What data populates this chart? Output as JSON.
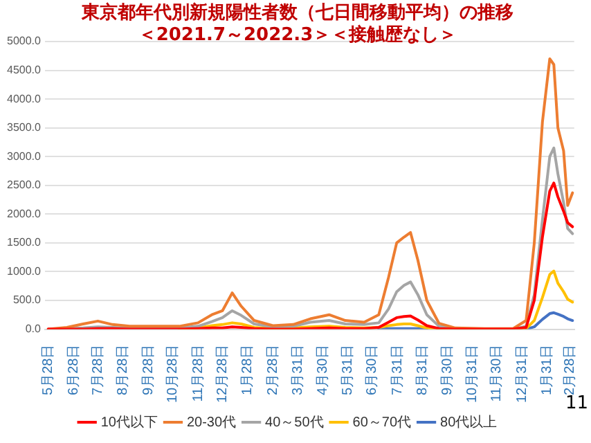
{
  "chart_data": {
    "type": "line",
    "title": "東京都年代別新規陽性者数（七日間移動平均）の推移",
    "subtitle": "＜2021.7～2022.3＞＜接触歴なし＞",
    "x": [
      "2020-05-28",
      "2020-06-20",
      "2020-07-10",
      "2020-07-28",
      "2020-08-15",
      "2020-09-05",
      "2020-10-05",
      "2020-11-05",
      "2020-11-28",
      "2020-12-15",
      "2020-12-28",
      "2021-01-09",
      "2021-01-20",
      "2021-02-05",
      "2021-02-28",
      "2021-03-25",
      "2021-04-15",
      "2021-05-08",
      "2021-05-28",
      "2021-06-20",
      "2021-07-08",
      "2021-07-20",
      "2021-07-30",
      "2021-08-08",
      "2021-08-16",
      "2021-08-25",
      "2021-09-05",
      "2021-09-20",
      "2021-10-10",
      "2021-11-15",
      "2021-12-20",
      "2022-01-05",
      "2022-01-15",
      "2022-01-25",
      "2022-02-03",
      "2022-02-08",
      "2022-02-13",
      "2022-02-20",
      "2022-02-25",
      "2022-03-03"
    ],
    "series": [
      {
        "name": "10代以下",
        "color": "#ff0000",
        "values": [
          0,
          0,
          0,
          10,
          10,
          0,
          0,
          0,
          10,
          20,
          20,
          40,
          30,
          10,
          0,
          0,
          10,
          20,
          10,
          10,
          30,
          120,
          200,
          220,
          230,
          160,
          60,
          10,
          0,
          0,
          0,
          30,
          500,
          1600,
          2400,
          2540,
          2300,
          2050,
          1850,
          1780
        ]
      },
      {
        "name": "20-30代",
        "color": "#ed7d31",
        "values": [
          0,
          30,
          90,
          140,
          80,
          50,
          50,
          50,
          110,
          250,
          320,
          630,
          400,
          150,
          60,
          80,
          180,
          250,
          150,
          120,
          250,
          900,
          1500,
          1600,
          1680,
          1200,
          500,
          100,
          20,
          10,
          10,
          150,
          1500,
          3600,
          4700,
          4600,
          3500,
          3100,
          2150,
          2370
        ]
      },
      {
        "name": "40～50代",
        "color": "#a5a5a5",
        "values": [
          0,
          10,
          20,
          40,
          30,
          20,
          20,
          20,
          50,
          130,
          200,
          320,
          240,
          90,
          40,
          50,
          120,
          150,
          90,
          80,
          110,
          350,
          650,
          760,
          820,
          600,
          250,
          50,
          10,
          0,
          0,
          50,
          600,
          1900,
          3000,
          3150,
          2700,
          2200,
          1750,
          1660
        ]
      },
      {
        "name": "60～70代",
        "color": "#ffc000",
        "values": [
          null,
          null,
          null,
          null,
          null,
          null,
          null,
          10,
          20,
          60,
          80,
          110,
          90,
          30,
          10,
          20,
          40,
          50,
          30,
          20,
          30,
          60,
          80,
          90,
          90,
          60,
          20,
          0,
          0,
          0,
          0,
          10,
          150,
          550,
          950,
          1010,
          800,
          650,
          520,
          470
        ]
      },
      {
        "name": "80代以上",
        "color": "#4472c4",
        "values": [
          null,
          null,
          null,
          null,
          null,
          null,
          null,
          null,
          null,
          null,
          null,
          null,
          null,
          null,
          null,
          null,
          null,
          null,
          null,
          null,
          0,
          10,
          10,
          10,
          10,
          10,
          0,
          null,
          null,
          null,
          null,
          0,
          40,
          170,
          270,
          285,
          260,
          220,
          180,
          150
        ]
      }
    ],
    "xlim": [
      "2020-05-24",
      "2022-03-05"
    ],
    "xticks": [
      {
        "value": "2020-05-28",
        "label": "5月28日"
      },
      {
        "value": "2020-06-28",
        "label": "6月28日"
      },
      {
        "value": "2020-07-28",
        "label": "7月28日"
      },
      {
        "value": "2020-08-28",
        "label": "8月28日"
      },
      {
        "value": "2020-09-28",
        "label": "9月28日"
      },
      {
        "value": "2020-10-28",
        "label": "10月28日"
      },
      {
        "value": "2020-11-28",
        "label": "11月28日"
      },
      {
        "value": "2020-12-28",
        "label": "12月28日"
      },
      {
        "value": "2021-01-28",
        "label": "1月28日"
      },
      {
        "value": "2021-02-28",
        "label": "2月28日"
      },
      {
        "value": "2021-03-31",
        "label": "3月31日"
      },
      {
        "value": "2021-04-30",
        "label": "4月30日"
      },
      {
        "value": "2021-05-31",
        "label": "5月31日"
      },
      {
        "value": "2021-06-30",
        "label": "6月30日"
      },
      {
        "value": "2021-07-31",
        "label": "7月31日"
      },
      {
        "value": "2021-08-31",
        "label": "8月31日"
      },
      {
        "value": "2021-09-30",
        "label": "9月30日"
      },
      {
        "value": "2021-10-31",
        "label": "10月31日"
      },
      {
        "value": "2021-11-30",
        "label": "11月30日"
      },
      {
        "value": "2021-12-31",
        "label": "12月31日"
      },
      {
        "value": "2022-01-31",
        "label": "1月31日"
      },
      {
        "value": "2022-02-28",
        "label": "2月28日"
      }
    ],
    "ylim": [
      0,
      5000
    ],
    "yticks": [
      {
        "value": 0,
        "label": "0.0"
      },
      {
        "value": 500,
        "label": "500.0"
      },
      {
        "value": 1000,
        "label": "1000.0"
      },
      {
        "value": 1500,
        "label": "1500.0"
      },
      {
        "value": 2000,
        "label": "2000.0"
      },
      {
        "value": 2500,
        "label": "2500.0"
      },
      {
        "value": 3000,
        "label": "3000.0"
      },
      {
        "value": 3500,
        "label": "3500.0"
      },
      {
        "value": 4000,
        "label": "4000.0"
      },
      {
        "value": 4500,
        "label": "4500.0"
      },
      {
        "value": 5000,
        "label": "5000.0"
      }
    ],
    "grid": "y",
    "legend": "bottom",
    "marker": "none",
    "line_style": "solid",
    "annotations": [
      "11"
    ]
  }
}
